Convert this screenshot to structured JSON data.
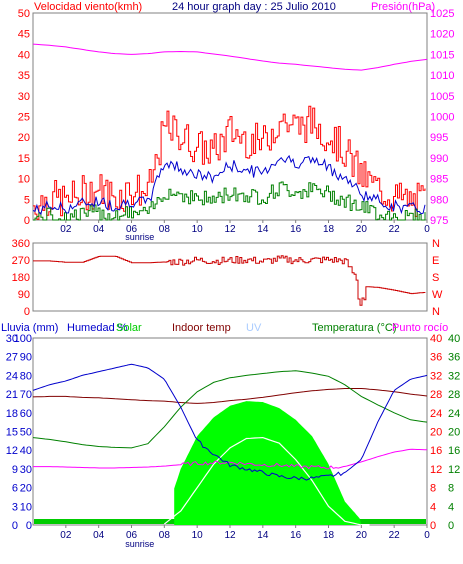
{
  "header": {
    "wind_label": "Velocidad viento(kmh)",
    "title": "24 hour graph day : 25 Julio 2010",
    "pressure_label": "Presión(hPa)"
  },
  "colors": {
    "wind_gust": "#ff0000",
    "wind_avg": "#0000cc",
    "wind_min": "#008000",
    "pressure": "#ff00ff",
    "direction": "#cc0000",
    "rain": "#00cc00",
    "humidity": "#0000cc",
    "solar": "#00ff00",
    "indoor": "#800000",
    "uv": "#aaccff",
    "temperature": "#008000",
    "dew_point": "#ff00ff",
    "axis_dark": "#000080",
    "frame": "#808080"
  },
  "bottom_header": {
    "rain": "Lluvia (mm)",
    "humidity": "Humedad %",
    "solar": "Solar",
    "indoor": "Indoor temp",
    "uv": "UV",
    "temperature": "Temperatura (°C)",
    "dew": "Punto rocío"
  },
  "x_ticks": [
    "02",
    "04",
    "06",
    "08",
    "10",
    "12",
    "14",
    "16",
    "18",
    "20",
    "22",
    "0"
  ],
  "sunrise_label": "sunrise",
  "chart_data": [
    {
      "type": "line",
      "panel": "wind_pressure",
      "title": "24 hour graph day : 25 Julio 2010",
      "x_hours": [
        0,
        1,
        2,
        3,
        4,
        5,
        6,
        7,
        8,
        9,
        10,
        11,
        12,
        13,
        14,
        15,
        16,
        17,
        18,
        19,
        20,
        21,
        22,
        23,
        24
      ],
      "y_left_ticks": [
        0,
        5,
        10,
        15,
        20,
        25,
        30,
        35,
        40,
        45,
        50
      ],
      "y_right_ticks": [
        975,
        980,
        985,
        990,
        995,
        1000,
        1005,
        1010,
        1015,
        1020,
        1025
      ],
      "ylim_left": [
        0,
        50
      ],
      "ylim_right": [
        975,
        1025
      ],
      "series": [
        {
          "name": "Velocidad viento(kmh)",
          "axis": "left",
          "values": [
            1,
            3,
            2,
            4,
            5,
            3,
            5,
            4,
            20,
            18,
            15,
            14,
            19,
            17,
            16,
            22,
            20,
            21,
            18,
            14,
            8,
            5,
            3,
            2,
            2
          ]
        },
        {
          "name": "Presión(hPa)",
          "axis": "right",
          "values": [
            1017.5,
            1017.2,
            1016.8,
            1016.2,
            1015.6,
            1015.2,
            1015,
            1015.2,
            1015.6,
            1015.7,
            1015.6,
            1015.1,
            1014.6,
            1014,
            1013.4,
            1012.9,
            1012.6,
            1012.2,
            1011.8,
            1011.4,
            1011.2,
            1011.8,
            1012.6,
            1013.3,
            1013.8
          ]
        }
      ]
    },
    {
      "type": "line",
      "panel": "wind_direction",
      "x_hours": [
        0,
        1,
        2,
        3,
        4,
        5,
        6,
        7,
        8,
        9,
        10,
        11,
        12,
        13,
        14,
        15,
        16,
        17,
        18,
        19,
        20,
        21,
        22,
        23,
        24
      ],
      "y_left_ticks": [
        0,
        90,
        180,
        270,
        360
      ],
      "y_right_ticks": [
        "N",
        "W",
        "S",
        "E",
        "N"
      ],
      "ylim": [
        0,
        360
      ],
      "series": [
        {
          "name": "direction",
          "values": [
            265,
            265,
            258,
            258,
            290,
            290,
            255,
            255,
            260,
            262,
            270,
            265,
            268,
            272,
            262,
            275,
            268,
            270,
            272,
            265,
            130,
            125,
            110,
            92,
            100
          ]
        }
      ]
    },
    {
      "type": "line",
      "panel": "climate",
      "x_hours": [
        0,
        1,
        2,
        3,
        4,
        5,
        6,
        7,
        8,
        9,
        10,
        11,
        12,
        13,
        14,
        15,
        16,
        17,
        18,
        19,
        20,
        21,
        22,
        23,
        24
      ],
      "y_axes": {
        "rain": [
          0,
          3,
          6,
          9,
          12,
          15,
          18,
          21,
          24,
          27,
          30
        ],
        "humidity": [
          0,
          10,
          20,
          30,
          40,
          50,
          60,
          70,
          80,
          90,
          100
        ],
        "temp_left": [
          0,
          4,
          8,
          12,
          16,
          20,
          24,
          28,
          32,
          36,
          40
        ],
        "temp_right": [
          0,
          4,
          8,
          12,
          16,
          20,
          24,
          28,
          32,
          36,
          40
        ]
      },
      "ylim_temp": [
        0,
        40
      ],
      "series": [
        {
          "name": "Humedad %",
          "axis": "humidity",
          "values": [
            72,
            75,
            77,
            80,
            82,
            84,
            86,
            84,
            78,
            63,
            45,
            38,
            32,
            30,
            28,
            26,
            25,
            25,
            26,
            28,
            35,
            55,
            72,
            78,
            80
          ]
        },
        {
          "name": "Temperatura (°C)",
          "axis": "temp",
          "values": [
            18.7,
            18.3,
            17.8,
            17.2,
            16.8,
            16.6,
            16.5,
            17.4,
            21,
            25.2,
            28.5,
            30.5,
            31.5,
            32,
            32.4,
            32.8,
            33,
            32.5,
            31.8,
            30,
            27.5,
            25.7,
            24,
            22.5,
            22
          ]
        },
        {
          "name": "Punto rocío",
          "axis": "temp",
          "values": [
            12.5,
            12.5,
            12.4,
            12.3,
            12.2,
            12.2,
            12.3,
            12.4,
            12.6,
            12.9,
            13.2,
            13.3,
            13.4,
            13.1,
            12.9,
            12.8,
            12.5,
            12.4,
            12.3,
            12.5,
            13.5,
            14.6,
            15.6,
            16.2,
            16.1
          ]
        },
        {
          "name": "Indoor temp",
          "axis": "temp",
          "values": [
            27.4,
            27.5,
            27.5,
            27.3,
            27.2,
            27,
            26.8,
            26.6,
            26.5,
            26.2,
            26,
            26.2,
            26.6,
            26.9,
            27.3,
            27.8,
            28.3,
            28.7,
            29,
            29.2,
            29.2,
            28.9,
            28.5,
            28,
            27.6
          ]
        },
        {
          "name": "Solar",
          "axis": "temp",
          "values": [
            1,
            1,
            1,
            1,
            1,
            1,
            1,
            1,
            1.5,
            12,
            19,
            23,
            25.5,
            26.5,
            26.3,
            25,
            22.5,
            19,
            13,
            5,
            1,
            1,
            1,
            1,
            1
          ]
        },
        {
          "name": "UV",
          "axis": "temp",
          "values": [
            0,
            0,
            0,
            0,
            0,
            0,
            0,
            0,
            0.2,
            3,
            8,
            13,
            16.5,
            18.5,
            18.7,
            17.5,
            14,
            9.5,
            4,
            0.8,
            0,
            0,
            0,
            0,
            0
          ]
        }
      ]
    }
  ]
}
